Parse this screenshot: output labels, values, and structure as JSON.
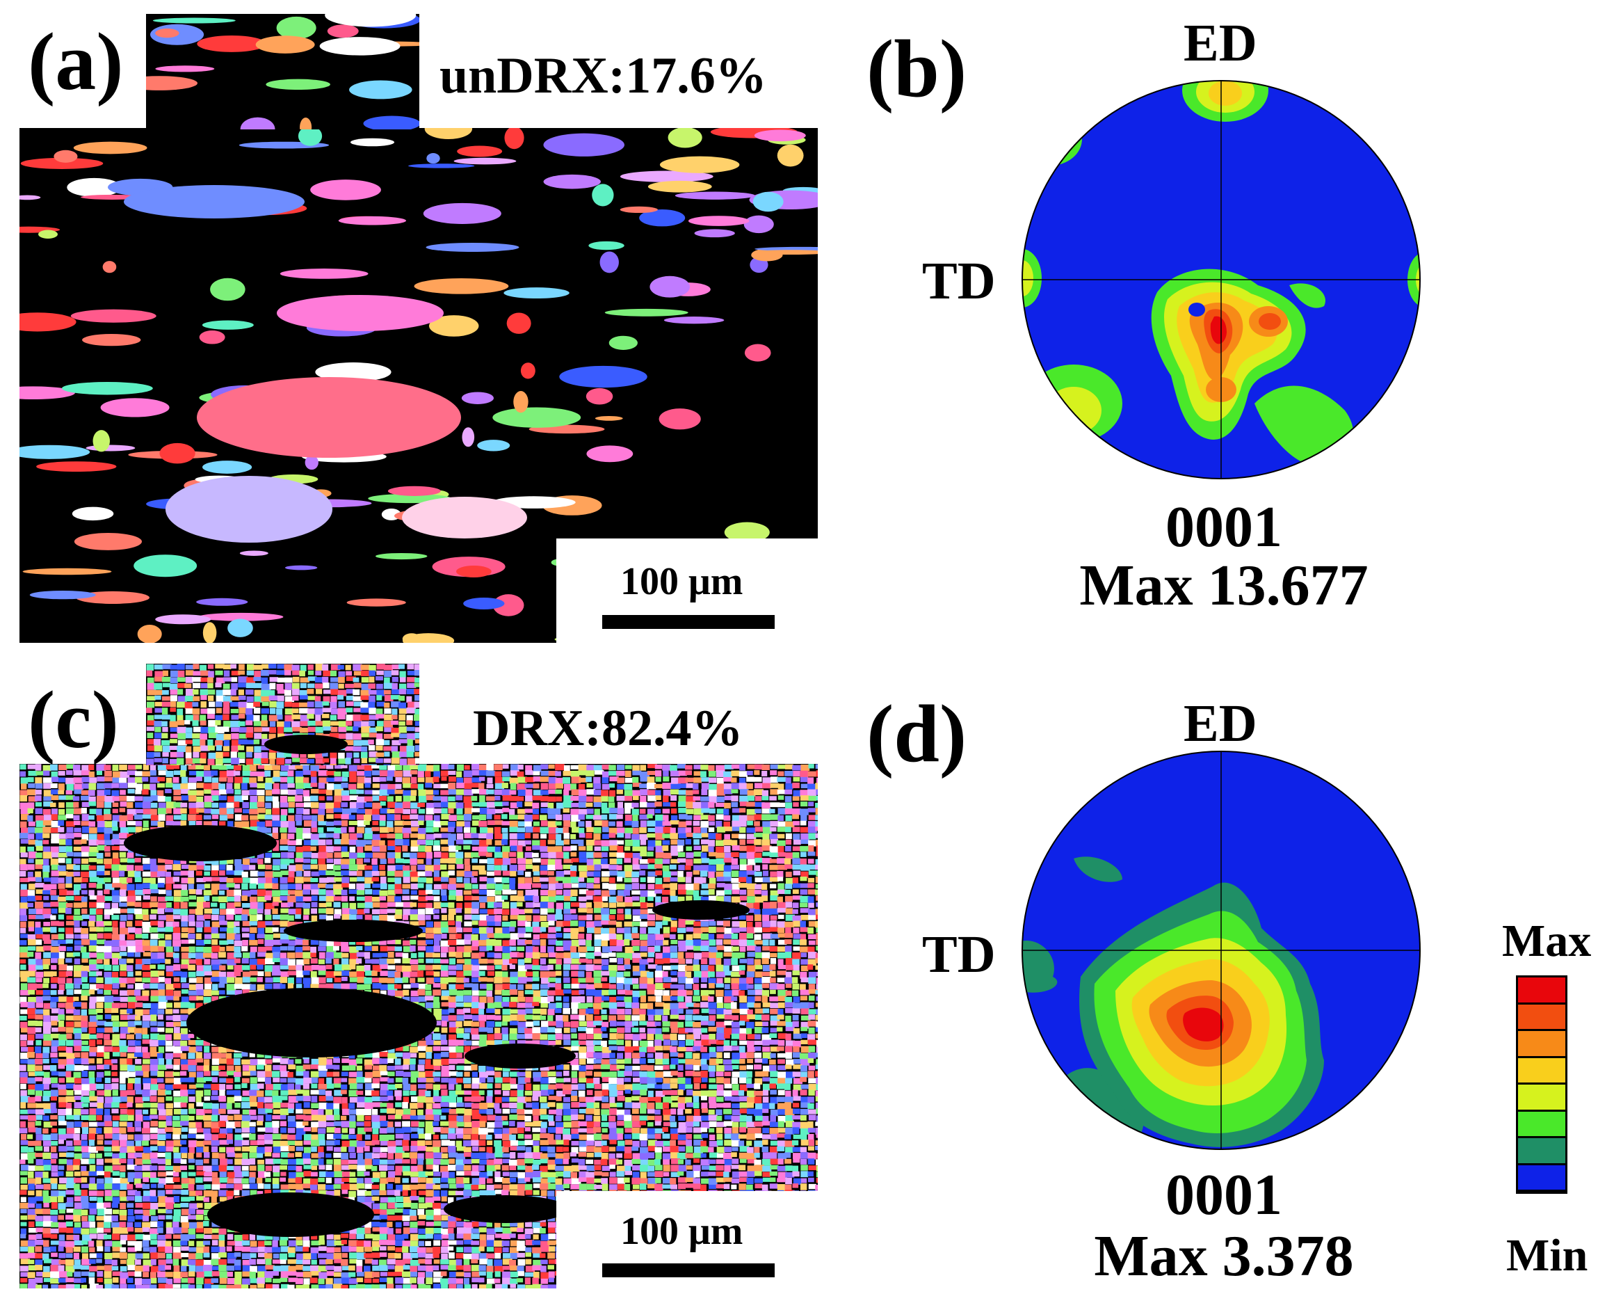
{
  "panel_a": {
    "label": "(a)",
    "text": "unDRX:17.6%",
    "scale_bar": "100 μm"
  },
  "panel_b": {
    "label": "(b)",
    "top_axis": "ED",
    "left_axis": "TD",
    "plane": "0001",
    "max": "Max 13.677"
  },
  "panel_c": {
    "label": "(c)",
    "text": "DRX:82.4%",
    "scale_bar": "100 μm"
  },
  "panel_d": {
    "label": "(d)",
    "top_axis": "ED",
    "left_axis": "TD",
    "plane": "0001",
    "max": "Max 3.378"
  },
  "colorbar": {
    "max_label": "Max",
    "min_label": "Min",
    "colors": [
      "#e8060c",
      "#f24e10",
      "#f78a18",
      "#f9cf1c",
      "#d6f21e",
      "#4ae82a",
      "#1f8f66",
      "#0e22e8"
    ]
  },
  "ebsd_palette": [
    "#ff5a8c",
    "#ff7a6b",
    "#ffa35a",
    "#ffd16b",
    "#c7f56b",
    "#7df07a",
    "#5ef0c3",
    "#7ad7ff",
    "#6f8dff",
    "#8a6bff",
    "#c07bff",
    "#ff7bd9",
    "#eaa9ff",
    "#ffffff",
    "#3a5cff",
    "#ff3b3b"
  ]
}
